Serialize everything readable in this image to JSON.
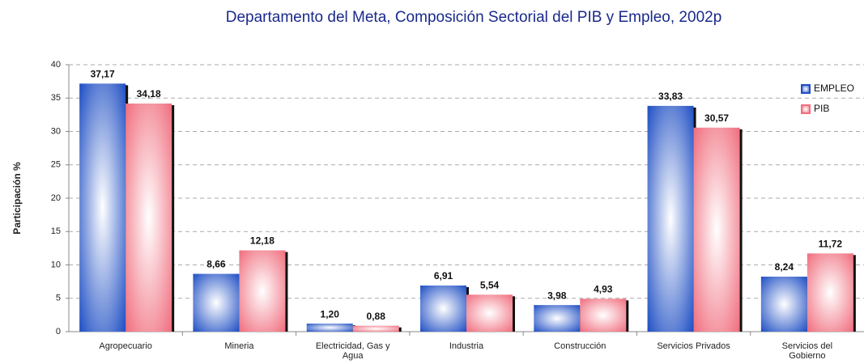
{
  "chart_data": {
    "type": "bar",
    "title": "Departamento del Meta, Composición Sectorial del PIB y Empleo, 2002p",
    "y_label": "Participación %",
    "categories": [
      "Agropecuario",
      "Mineria",
      "Electricidad, Gas y Agua",
      "Industria",
      "Construcción",
      "Servicios Privados",
      "Servicios del Gobierno"
    ],
    "series": [
      {
        "name": "EMPLEO",
        "color": "#1f4fc4",
        "values": [
          37.17,
          8.66,
          1.2,
          6.91,
          3.98,
          33.83,
          8.24
        ],
        "value_labels": [
          "37,17",
          "8,66",
          "1,20",
          "6,91",
          "3,98",
          "33,83",
          "8,24"
        ]
      },
      {
        "name": "PIB",
        "color": "#f06e7e",
        "values": [
          34.18,
          12.18,
          0.88,
          5.54,
          4.93,
          30.57,
          11.72
        ],
        "value_labels": [
          "34,18",
          "12,18",
          "0,88",
          "5,54",
          "4,93",
          "30,57",
          "11,72"
        ]
      }
    ],
    "ylim": [
      0,
      40
    ],
    "yticks": [
      0,
      5,
      10,
      15,
      20,
      25,
      30,
      35,
      40
    ],
    "grid": true,
    "legend": "top-right"
  }
}
